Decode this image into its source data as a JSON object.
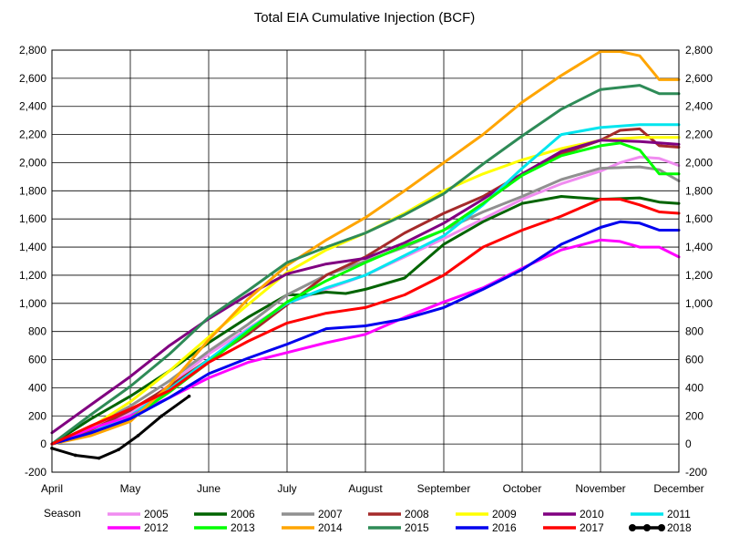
{
  "chart_data": {
    "type": "line",
    "title": "Total EIA Cumulative Injection (BCF)",
    "legend_title": "Season",
    "legend_position": "bottom",
    "grid": true,
    "ylim": [
      -200,
      2800
    ],
    "yticks": [
      -200,
      0,
      200,
      400,
      600,
      800,
      1000,
      1200,
      1400,
      1600,
      1800,
      2000,
      2200,
      2400,
      2600,
      2800
    ],
    "ytick_labels": [
      "-200",
      "0",
      "200",
      "400",
      "600",
      "800",
      "1,000",
      "1,200",
      "1,400",
      "1,600",
      "1,800",
      "2,000",
      "2,200",
      "2,400",
      "2,600",
      "2,800"
    ],
    "xlim": [
      0,
      8
    ],
    "xtick_labels": [
      "April",
      "May",
      "June",
      "July",
      "August",
      "September",
      "October",
      "November",
      "December"
    ],
    "series": [
      {
        "name": "2005",
        "color": "#f08cf0",
        "x": [
          0,
          0.5,
          1,
          1.5,
          2,
          2.5,
          3,
          3.5,
          4,
          4.5,
          5,
          5.5,
          6,
          6.5,
          7,
          7.25,
          7.5,
          7.75,
          8
        ],
        "y": [
          0,
          80,
          220,
          420,
          640,
          820,
          1000,
          1100,
          1200,
          1330,
          1460,
          1600,
          1740,
          1850,
          1940,
          2000,
          2040,
          2030,
          1980
        ]
      },
      {
        "name": "2006",
        "color": "#006400",
        "x": [
          0,
          0.5,
          1,
          1.5,
          2,
          2.5,
          3,
          3.25,
          3.5,
          3.75,
          4,
          4.5,
          5,
          5.5,
          6,
          6.5,
          7,
          7.5,
          7.75,
          8
        ],
        "y": [
          0,
          180,
          340,
          520,
          720,
          900,
          1060,
          1060,
          1080,
          1070,
          1100,
          1180,
          1420,
          1580,
          1710,
          1760,
          1740,
          1750,
          1720,
          1710
        ]
      },
      {
        "name": "2007",
        "color": "#909090",
        "x": [
          0,
          0.5,
          1,
          1.5,
          2,
          2.5,
          3,
          3.5,
          4,
          4.5,
          5,
          5.5,
          6,
          6.5,
          7,
          7.5,
          7.75,
          8
        ],
        "y": [
          0,
          120,
          270,
          450,
          660,
          850,
          1060,
          1200,
          1300,
          1400,
          1520,
          1650,
          1760,
          1880,
          1960,
          1970,
          1950,
          1870
        ]
      },
      {
        "name": "2008",
        "color": "#a52a2a",
        "x": [
          0,
          0.5,
          1,
          1.5,
          2,
          2.5,
          3,
          3.5,
          4,
          4.5,
          5,
          5.5,
          6,
          6.5,
          7,
          7.25,
          7.5,
          7.75,
          8
        ],
        "y": [
          0,
          100,
          240,
          410,
          600,
          780,
          990,
          1200,
          1330,
          1500,
          1640,
          1760,
          1920,
          2060,
          2160,
          2230,
          2240,
          2120,
          2110
        ]
      },
      {
        "name": "2009",
        "color": "#ffff00",
        "x": [
          0,
          0.5,
          1,
          1.5,
          2,
          2.5,
          3,
          3.5,
          4,
          4.5,
          5,
          5.5,
          6,
          6.5,
          7,
          7.5,
          8
        ],
        "y": [
          0,
          120,
          300,
          520,
          760,
          990,
          1220,
          1380,
          1500,
          1640,
          1800,
          1920,
          2020,
          2100,
          2160,
          2180,
          2180
        ]
      },
      {
        "name": "2010",
        "color": "#800080",
        "x": [
          0,
          0.5,
          1,
          1.5,
          2,
          2.5,
          3,
          3.5,
          4,
          4.5,
          5,
          5.5,
          6,
          6.5,
          7,
          7.5,
          8
        ],
        "y": [
          80,
          280,
          480,
          700,
          890,
          1060,
          1210,
          1280,
          1320,
          1430,
          1570,
          1740,
          1920,
          2080,
          2160,
          2150,
          2130
        ]
      },
      {
        "name": "2011",
        "color": "#00e5ee",
        "x": [
          0,
          0.5,
          1,
          1.5,
          2,
          2.5,
          3,
          3.5,
          4,
          4.5,
          5,
          5.5,
          6,
          6.5,
          7,
          7.5,
          8
        ],
        "y": [
          0,
          80,
          200,
          390,
          600,
          810,
          1000,
          1110,
          1200,
          1340,
          1480,
          1700,
          1960,
          2200,
          2250,
          2270,
          2270
        ]
      },
      {
        "name": "2012",
        "color": "#ff00ff",
        "x": [
          0,
          0.5,
          1,
          1.5,
          2,
          2.5,
          3,
          3.5,
          4,
          4.5,
          5,
          5.5,
          6,
          6.5,
          7,
          7.25,
          7.5,
          7.75,
          8
        ],
        "y": [
          0,
          110,
          200,
          330,
          470,
          580,
          650,
          720,
          780,
          900,
          1010,
          1110,
          1250,
          1380,
          1450,
          1440,
          1400,
          1400,
          1330
        ]
      },
      {
        "name": "2013",
        "color": "#00ff00",
        "x": [
          0,
          0.5,
          1,
          1.5,
          2,
          2.5,
          3,
          3.5,
          4,
          4.5,
          5,
          5.5,
          6,
          6.5,
          7,
          7.25,
          7.5,
          7.75,
          8
        ],
        "y": [
          0,
          70,
          180,
          370,
          580,
          800,
          1010,
          1160,
          1290,
          1410,
          1520,
          1710,
          1910,
          2050,
          2120,
          2140,
          2090,
          1920,
          1920
        ]
      },
      {
        "name": "2014",
        "color": "#ffa500",
        "x": [
          0,
          0.5,
          1,
          1.5,
          2,
          2.5,
          3,
          3.5,
          4,
          4.5,
          5,
          5.5,
          6,
          6.5,
          7,
          7.25,
          7.5,
          7.75,
          8
        ],
        "y": [
          0,
          60,
          160,
          420,
          740,
          1030,
          1270,
          1450,
          1610,
          1800,
          2000,
          2200,
          2430,
          2620,
          2790,
          2790,
          2760,
          2590,
          2590
        ]
      },
      {
        "name": "2015",
        "color": "#2e8b57",
        "x": [
          0,
          0.5,
          1,
          1.5,
          2,
          2.5,
          3,
          3.5,
          4,
          4.5,
          5,
          5.5,
          6,
          6.5,
          7,
          7.5,
          7.75,
          8
        ],
        "y": [
          0,
          210,
          410,
          640,
          900,
          1090,
          1290,
          1400,
          1500,
          1630,
          1780,
          1990,
          2190,
          2380,
          2520,
          2550,
          2490,
          2490
        ]
      },
      {
        "name": "2016",
        "color": "#0000ee",
        "x": [
          0,
          0.5,
          1,
          1.5,
          2,
          2.5,
          3,
          3.5,
          4,
          4.5,
          5,
          5.5,
          6,
          6.5,
          7,
          7.25,
          7.5,
          7.75,
          8
        ],
        "y": [
          0,
          80,
          180,
          330,
          500,
          610,
          710,
          820,
          840,
          890,
          970,
          1100,
          1240,
          1420,
          1540,
          1580,
          1570,
          1520,
          1520
        ]
      },
      {
        "name": "2017",
        "color": "#ff0000",
        "x": [
          0,
          0.5,
          1,
          1.5,
          2,
          2.5,
          3,
          3.5,
          4,
          4.5,
          5,
          5.5,
          6,
          6.5,
          7,
          7.25,
          7.5,
          7.75,
          8
        ],
        "y": [
          0,
          130,
          250,
          380,
          580,
          730,
          860,
          930,
          970,
          1060,
          1200,
          1400,
          1520,
          1620,
          1740,
          1740,
          1700,
          1650,
          1640
        ]
      },
      {
        "name": "2018",
        "color": "#000000",
        "x": [
          0,
          0.3,
          0.6,
          0.85,
          1.1,
          1.4,
          1.75
        ],
        "y": [
          -30,
          -80,
          -100,
          -40,
          60,
          200,
          340
        ]
      }
    ]
  }
}
